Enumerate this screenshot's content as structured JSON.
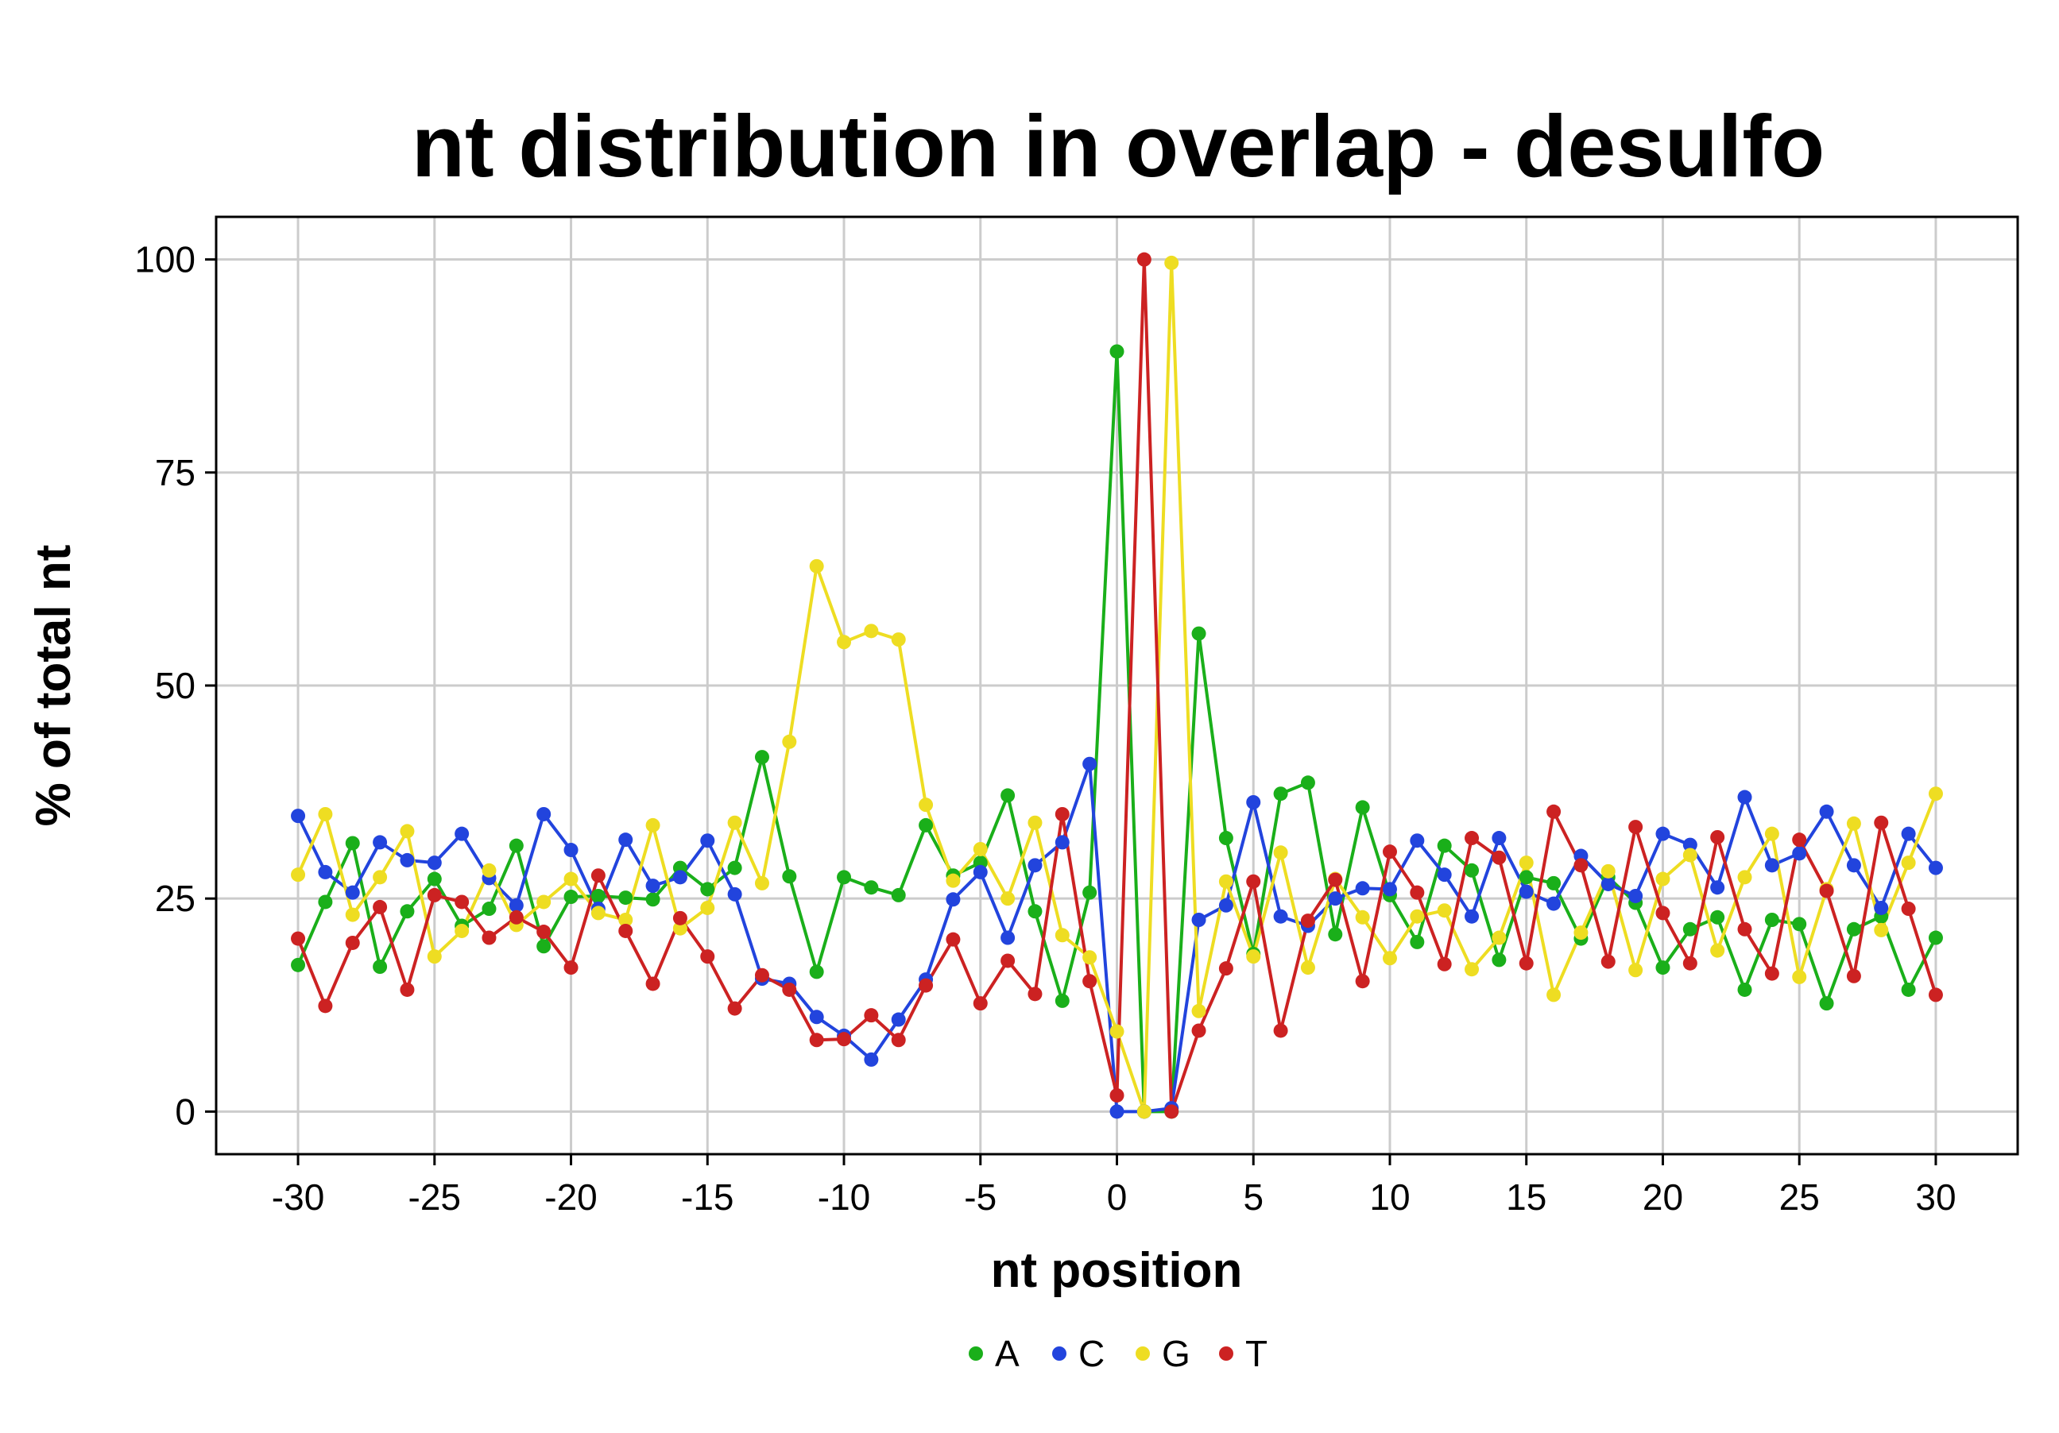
{
  "chart_data": {
    "type": "line",
    "title": "nt distribution in overlap - desulfo",
    "xlabel": "nt position",
    "ylabel": "% of total nt",
    "xlim": [
      -33,
      33
    ],
    "ylim": [
      -5,
      105
    ],
    "xticks": [
      -30,
      -25,
      -20,
      -15,
      -10,
      -5,
      0,
      5,
      10,
      15,
      20,
      25,
      30
    ],
    "yticks": [
      0,
      25,
      50,
      75,
      100
    ],
    "grid": true,
    "legend_position": "bottom",
    "x": [
      -30,
      -29,
      -28,
      -27,
      -26,
      -25,
      -24,
      -23,
      -22,
      -21,
      -20,
      -19,
      -18,
      -17,
      -16,
      -15,
      -14,
      -13,
      -12,
      -11,
      -10,
      -9,
      -8,
      -7,
      -6,
      -5,
      -4,
      -3,
      -2,
      -1,
      0,
      1,
      2,
      3,
      4,
      5,
      6,
      7,
      8,
      9,
      10,
      11,
      12,
      13,
      14,
      15,
      16,
      17,
      18,
      19,
      20,
      21,
      22,
      23,
      24,
      25,
      26,
      27,
      28,
      29,
      30
    ],
    "series": [
      {
        "name": "A",
        "color": "#1aaf1a",
        "values": [
          17.2,
          24.6,
          31.5,
          17.0,
          23.5,
          27.3,
          21.8,
          23.8,
          31.2,
          19.4,
          25.2,
          25.3,
          25.1,
          24.9,
          28.6,
          26.1,
          28.6,
          41.6,
          27.6,
          16.4,
          27.5,
          26.3,
          25.4,
          33.6,
          27.7,
          29.2,
          37.1,
          23.5,
          13.0,
          25.7,
          89.2,
          0.0,
          0.0,
          56.1,
          32.1,
          18.5,
          37.3,
          38.6,
          20.8,
          35.7,
          25.4,
          19.9,
          31.2,
          28.3,
          17.8,
          27.5,
          26.8,
          20.3,
          27.5,
          24.5,
          16.9,
          21.4,
          22.8,
          14.3,
          22.5,
          22.0,
          12.7,
          21.4,
          22.9,
          14.3,
          20.4
        ]
      },
      {
        "name": "C",
        "color": "#2244dd",
        "values": [
          34.7,
          28.1,
          25.7,
          31.6,
          29.5,
          29.2,
          32.6,
          27.4,
          24.2,
          34.9,
          30.7,
          23.8,
          31.9,
          26.5,
          27.5,
          31.8,
          25.5,
          15.6,
          15.0,
          11.1,
          8.9,
          6.1,
          10.8,
          15.5,
          24.9,
          28.1,
          20.4,
          28.9,
          31.6,
          40.8,
          0.0,
          0.0,
          0.4,
          22.5,
          24.2,
          36.3,
          22.9,
          21.8,
          25.0,
          26.2,
          26.1,
          31.8,
          27.8,
          22.9,
          32.1,
          25.8,
          24.4,
          30.0,
          26.7,
          25.3,
          32.6,
          31.3,
          26.3,
          36.9,
          28.9,
          30.3,
          35.2,
          28.9,
          23.9,
          32.6,
          28.6
        ]
      },
      {
        "name": "G",
        "color": "#eedd22",
        "values": [
          27.8,
          34.9,
          23.1,
          27.5,
          32.9,
          18.2,
          21.2,
          28.3,
          21.9,
          24.6,
          27.3,
          23.3,
          22.5,
          33.6,
          21.5,
          23.9,
          33.9,
          26.8,
          43.4,
          64.0,
          55.1,
          56.4,
          55.4,
          36.0,
          27.1,
          30.8,
          25.0,
          33.9,
          20.7,
          18.1,
          9.4,
          0.0,
          99.6,
          11.8,
          27.0,
          18.2,
          30.4,
          16.9,
          27.3,
          22.8,
          18.0,
          22.9,
          23.6,
          16.7,
          20.4,
          29.2,
          13.7,
          21.0,
          28.2,
          16.6,
          27.3,
          30.1,
          18.9,
          27.5,
          32.6,
          15.8,
          26.1,
          33.8,
          21.3,
          29.2,
          37.3
        ]
      },
      {
        "name": "T",
        "color": "#cc2222",
        "values": [
          20.3,
          12.4,
          19.8,
          24.0,
          14.3,
          25.4,
          24.6,
          20.4,
          22.8,
          21.1,
          16.9,
          27.7,
          21.2,
          15.0,
          22.7,
          18.2,
          12.1,
          16.0,
          14.3,
          8.4,
          8.5,
          11.3,
          8.4,
          14.8,
          20.2,
          12.7,
          17.7,
          13.8,
          34.9,
          15.3,
          1.9,
          100.0,
          0.0,
          9.5,
          16.8,
          27.0,
          9.5,
          22.4,
          27.2,
          15.3,
          30.5,
          25.7,
          17.3,
          32.1,
          29.8,
          17.4,
          35.2,
          28.9,
          17.6,
          33.4,
          23.3,
          17.4,
          32.2,
          21.4,
          16.2,
          31.9,
          25.9,
          15.9,
          33.9,
          23.8,
          13.7
        ]
      }
    ]
  }
}
